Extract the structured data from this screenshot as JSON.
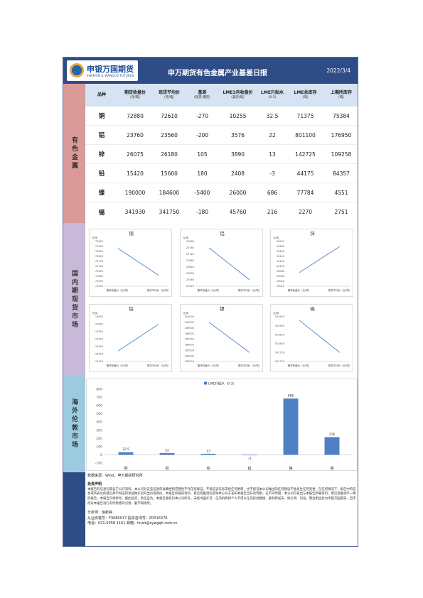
{
  "header": {
    "logo_cn": "申银万国期货",
    "logo_en": "SHENYIN & WANGUO FUTURES",
    "title": "申万期货有色金属产业基差日报",
    "date": "2022/3/4"
  },
  "sections": {
    "nonferrous": "有色金属",
    "domestic": "国内期现货市场",
    "overseas": "海外伦敦市场"
  },
  "table": {
    "headers": [
      {
        "main": "品种",
        "sub": ""
      },
      {
        "main": "期货收盘价",
        "sub": "（元/吨）"
      },
      {
        "main": "现货平均价",
        "sub": "（元/吨）"
      },
      {
        "main": "基差",
        "sub": "（现货-期货）"
      },
      {
        "main": "LME3月收盘价",
        "sub": "（美元/吨）"
      },
      {
        "main": "LME升贴水",
        "sub": "（0-3）"
      },
      {
        "main": "LME总库存",
        "sub": "（吨）"
      },
      {
        "main": "上期所库存",
        "sub": "（吨）"
      }
    ],
    "rows": [
      {
        "name": "铜",
        "futures": "72880",
        "spot": "72610",
        "basis": "-270",
        "lme3m": "10255",
        "lme_spread": "32.5",
        "lme_stock": "71375",
        "shfe_stock": "75384"
      },
      {
        "name": "铝",
        "futures": "23760",
        "spot": "23560",
        "basis": "-200",
        "lme3m": "3576",
        "lme_spread": "22",
        "lme_stock": "801100",
        "shfe_stock": "176950"
      },
      {
        "name": "锌",
        "futures": "26075",
        "spot": "26180",
        "basis": "105",
        "lme3m": "3890",
        "lme_spread": "13",
        "lme_stock": "142725",
        "shfe_stock": "109258"
      },
      {
        "name": "铅",
        "futures": "15420",
        "spot": "15600",
        "basis": "180",
        "lme3m": "2408",
        "lme_spread": "-3",
        "lme_stock": "44175",
        "shfe_stock": "84357"
      },
      {
        "name": "镍",
        "futures": "190000",
        "spot": "184600",
        "basis": "-5400",
        "lme3m": "26000",
        "lme_spread": "686",
        "lme_stock": "77784",
        "shfe_stock": "4551"
      },
      {
        "name": "锡",
        "futures": "341930",
        "spot": "341750",
        "basis": "-180",
        "lme3m": "45760",
        "lme_spread": "216",
        "lme_stock": "2270",
        "shfe_stock": "2751"
      }
    ]
  },
  "mini_charts": [
    {
      "title": "铜",
      "unit": "元/吨",
      "x": [
        "期货收盘价（元/吨）",
        "现货平均价（元/吨）"
      ],
      "ticks": [
        "72950",
        "72900",
        "72850",
        "72800",
        "72750",
        "72700",
        "72650",
        "72600",
        "72550",
        "72500"
      ],
      "values": [
        72880,
        72610
      ],
      "ylim": [
        72500,
        72950
      ]
    },
    {
      "title": "铝",
      "unit": "元/吨",
      "x": [
        "期货收盘价（元/吨）",
        "现货平均价（元/吨）"
      ],
      "ticks": [
        "23800",
        "23760",
        "23720",
        "23680",
        "23640",
        "23600",
        "23560",
        "23520"
      ],
      "values": [
        23760,
        23560
      ],
      "ylim": [
        23520,
        23800
      ]
    },
    {
      "title": "锌",
      "unit": "元/吨",
      "x": [
        "期货收盘价（元/吨）",
        "现货平均价（元/吨）"
      ],
      "ticks": [
        "26200",
        "26180",
        "26160",
        "26140",
        "26120",
        "26100",
        "26080",
        "26060",
        "26040",
        "26020"
      ],
      "values": [
        26075,
        26180
      ],
      "ylim": [
        26020,
        26200
      ]
    },
    {
      "title": "铅",
      "unit": "元/吨",
      "x": [
        "期货收盘价（元/吨）",
        "现货平均价（元/吨）"
      ],
      "ticks": [
        "15650",
        "15600",
        "15550",
        "15500",
        "15450",
        "15400",
        "15350"
      ],
      "values": [
        15420,
        15600
      ],
      "ylim": [
        15350,
        15650
      ]
    },
    {
      "title": "镍",
      "unit": "元/吨",
      "x": [
        "期货收盘价（元/吨）",
        "现货平均价（元/吨）"
      ],
      "ticks": [
        "191000",
        "190000",
        "189000",
        "188000",
        "187000",
        "186000",
        "185000",
        "184000",
        "183000"
      ],
      "values": [
        190000,
        184600
      ],
      "ylim": [
        183000,
        191000
      ]
    },
    {
      "title": "锡",
      "unit": "元/吨",
      "x": [
        "期货收盘价（元/吨）",
        "现货平均价（元/吨）"
      ],
      "ticks": [
        "341950",
        "341900",
        "341850",
        "341800",
        "341750",
        "341700"
      ],
      "values": [
        341930,
        341750
      ],
      "ylim": [
        341700,
        341950
      ]
    }
  ],
  "chart_data": {
    "type": "bar",
    "title": "LME升贴水（0-3）",
    "categories": [
      "铜",
      "铝",
      "锌",
      "铅",
      "镍",
      "锡"
    ],
    "values": [
      32.5,
      22,
      13,
      -3,
      686,
      216
    ],
    "labels": [
      "32.5",
      "22",
      "13",
      "-3",
      "686",
      "216"
    ],
    "yticks": [
      "800",
      "700",
      "600",
      "500",
      "400",
      "300",
      "200",
      "100",
      "0",
      "-100"
    ],
    "ylim": [
      -100,
      800
    ],
    "color": "#4f7fc4",
    "grid": false
  },
  "footer": {
    "source": "数据来源：Wind，申万期货研究所",
    "disclaimer_title": "免责声明",
    "disclaimer": "本报告的信息均来自于公开资料，本公司对这些信息的准确性和完整性不作任何保证，不保证该信息未经任何更新，也不保证本公司做出的任何建议不会发生任何变更。在任何情况下，报告中的信息或所表达的意见并不构成所述品种买卖的出价或询价。本报告所载的资料、意见及推测仅反映本公司于发布本报告当日的判断，在不同时期，本公司可发出与本报告所载资料、意见及推测不一致的报告。本报告仅供参考，据此投资，责任自负。本报告版权归本公司所有，未经书面许可，任何机构和个人不得以任何形式翻版、复制和发布，如引用、刊发，需注明出处为申银万国期货，且不得对本报告进行有悖原意的引用、删节和修改。",
    "analyst": "分析师：倪新婷",
    "qualification": "从业资格号：F3080017  投资咨询号：Z0016370",
    "contact": "电话：021-5058 1161  邮箱：hnxit@sywgqh.com.cn"
  }
}
